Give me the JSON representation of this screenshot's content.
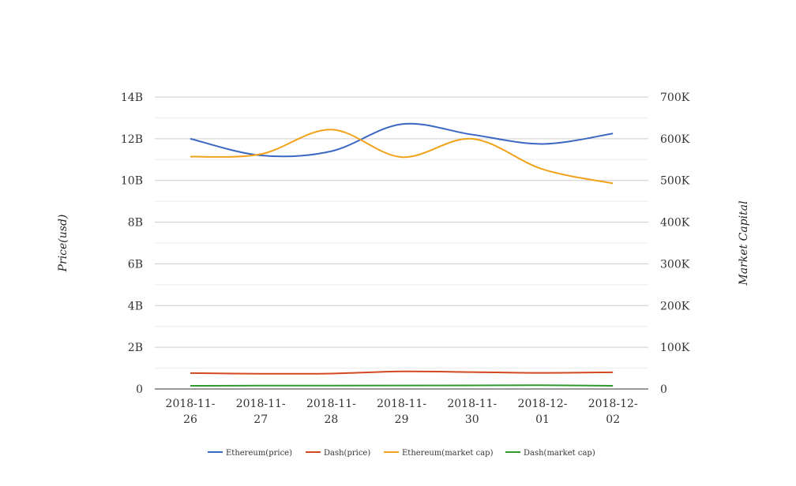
{
  "chart_data": {
    "type": "line",
    "categories": [
      "2018-11-26",
      "2018-11-27",
      "2018-11-28",
      "2018-11-29",
      "2018-11-30",
      "2018-12-01",
      "2018-12-02"
    ],
    "category_tick_lines": [
      [
        "2018-11-",
        "26"
      ],
      [
        "2018-11-",
        "27"
      ],
      [
        "2018-11-",
        "28"
      ],
      [
        "2018-11-",
        "29"
      ],
      [
        "2018-11-",
        "30"
      ],
      [
        "2018-12-",
        "01"
      ],
      [
        "2018-12-",
        "02"
      ]
    ],
    "ylabel": "Price(usd)",
    "y2label": "Market Capital",
    "ylim": [
      0,
      14000000000
    ],
    "y2lim": [
      0,
      700000
    ],
    "y_ticks": [
      0,
      2000000000,
      4000000000,
      6000000000,
      8000000000,
      10000000000,
      12000000000,
      14000000000
    ],
    "y_tick_labels": [
      "0",
      "2B",
      "4B",
      "6B",
      "8B",
      "10B",
      "12B",
      "14B"
    ],
    "y2_ticks": [
      0,
      100000,
      200000,
      300000,
      400000,
      500000,
      600000,
      700000
    ],
    "y2_tick_labels": [
      "0",
      "100K",
      "200K",
      "300K",
      "400K",
      "500K",
      "600K",
      "700K"
    ],
    "grid": true,
    "legend_position": "bottom",
    "series": [
      {
        "name": "Ethereum(price)",
        "axis": "left",
        "color": "#3a67c2",
        "values": [
          12000000000,
          11200000000,
          11400000000,
          12700000000,
          12200000000,
          11750000000,
          12250000000
        ]
      },
      {
        "name": "Dash(price)",
        "axis": "left",
        "color": "#d2491f",
        "values": [
          760000000,
          730000000,
          740000000,
          840000000,
          810000000,
          770000000,
          800000000
        ]
      },
      {
        "name": "Ethereum(market cap)",
        "axis": "right",
        "color": "#f1a21a",
        "values": [
          557000,
          563000,
          622000,
          556000,
          600000,
          527000,
          493000
        ]
      },
      {
        "name": "Dash(market cap)",
        "axis": "right",
        "color": "#2e9a2e",
        "values": [
          7500,
          8000,
          8000,
          8200,
          8500,
          9000,
          7500
        ]
      }
    ]
  }
}
